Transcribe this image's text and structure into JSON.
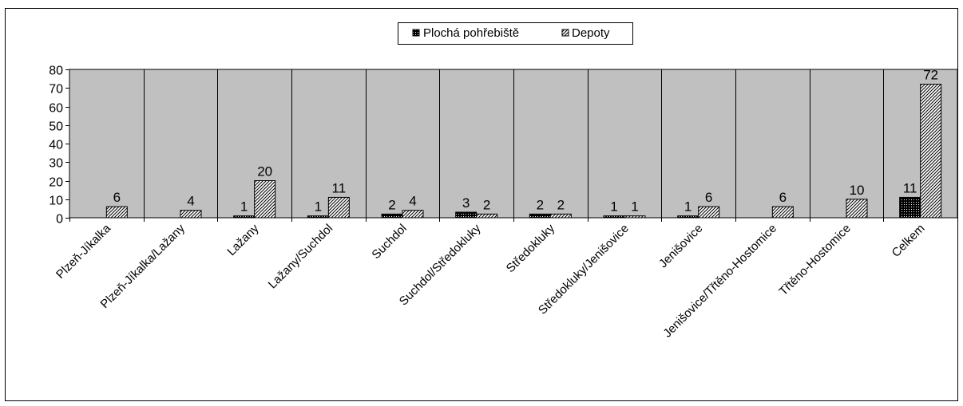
{
  "chart_data": {
    "type": "bar",
    "title": "",
    "xlabel": "",
    "ylabel": "",
    "ylim": [
      0,
      80
    ],
    "yticks": [
      0,
      10,
      20,
      30,
      40,
      50,
      60,
      70,
      80
    ],
    "grid": "vertical category separators",
    "legend_position": "top-center",
    "plot_background": "#c0c0c0",
    "categories": [
      "Plzeň-Jíkalka",
      "Plzeň-Jíkalka/Lažany",
      "Lažany",
      "Lažany/Suchdol",
      "Suchdol",
      "Suchdol/Středokluky",
      "Středokluky",
      "Středokluky/Jenišovice",
      "Jenišovice",
      "Jenišovice/Třtěno-Hostomice",
      "Třtěno-Hostomice",
      "Celkem"
    ],
    "series": [
      {
        "name": "Plochá pohřebiště",
        "values": [
          null,
          null,
          1,
          1,
          2,
          3,
          2,
          1,
          1,
          null,
          null,
          11
        ],
        "fill": "dark-dotted"
      },
      {
        "name": "Depoty",
        "values": [
          6,
          4,
          20,
          11,
          4,
          2,
          2,
          1,
          6,
          6,
          10,
          72
        ],
        "fill": "diagonal-hatch"
      }
    ]
  }
}
